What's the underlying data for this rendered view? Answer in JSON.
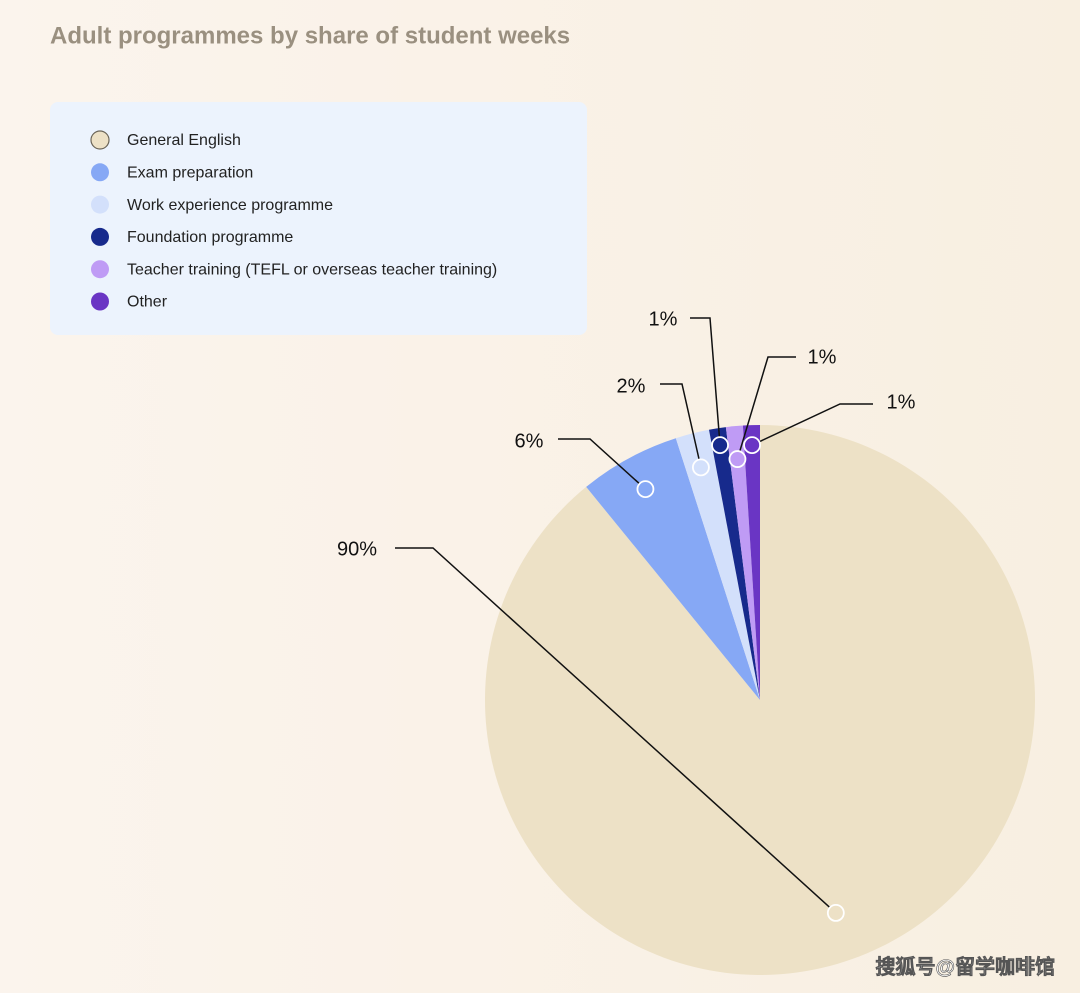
{
  "chart_data": {
    "type": "pie",
    "title": "Adult programmes by share of student weeks",
    "categories": [
      "General English",
      "Exam preparation",
      "Work experience programme",
      "Foundation programme",
      "Teacher training (TEFL or overseas teacher training)",
      "Other"
    ],
    "values": [
      90,
      6,
      2,
      1,
      1,
      1
    ],
    "value_labels": [
      "90%",
      "6%",
      "2%",
      "1%",
      "1%",
      "1%"
    ],
    "colors": [
      "#ede1c6",
      "#86a8f5",
      "#d3e0fb",
      "#172a8c",
      "#bf9bf5",
      "#6a35c4"
    ],
    "legend": "top-left",
    "watermark": "搜狐号@留学咖啡馆"
  }
}
